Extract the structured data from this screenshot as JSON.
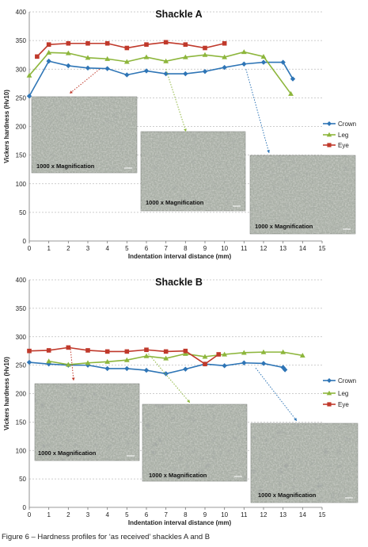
{
  "figure_caption": "Figure 6 – Hardness profiles for ‘as received’ shackles A and B",
  "colors": {
    "crown": "#2e75b6",
    "leg": "#8db63c",
    "eye": "#c0392b",
    "grid": "#bdbdbd",
    "micro": "#a9afa6"
  },
  "chart_data": [
    {
      "type": "line",
      "title": "Shackle A",
      "xlabel": "Indentation interval distance (mm)",
      "ylabel": "Vickers hardness (Hv10)",
      "xlim": [
        0,
        15
      ],
      "ylim": [
        0,
        400
      ],
      "xticks": [
        "0",
        "1",
        "2",
        "3",
        "4",
        "5",
        "6",
        "7",
        "8",
        "9",
        "10",
        "11",
        "12",
        "13",
        "14",
        "15"
      ],
      "yticks": [
        "0",
        "50",
        "100",
        "150",
        "200",
        "250",
        "300",
        "350",
        "400"
      ],
      "grid": true,
      "legend": "right",
      "series": [
        {
          "name": "Crown",
          "color": "#2e75b6",
          "marker": "diamond",
          "x": [
            0,
            1,
            2,
            3,
            4,
            5,
            6,
            7,
            8,
            9,
            10,
            11,
            12,
            13,
            13.5
          ],
          "y": [
            253,
            314,
            306,
            302,
            301,
            290,
            297,
            292,
            292,
            296,
            303,
            309,
            312,
            312,
            283
          ]
        },
        {
          "name": "Leg",
          "color": "#8db63c",
          "marker": "triangle",
          "x": [
            0,
            1,
            2,
            3,
            4,
            5,
            6,
            7,
            8,
            9,
            10,
            11,
            12,
            13.4
          ],
          "y": [
            289,
            329,
            328,
            320,
            318,
            313,
            321,
            314,
            321,
            325,
            321,
            330,
            322,
            257
          ]
        },
        {
          "name": "Eye",
          "color": "#c0392b",
          "marker": "square",
          "x": [
            0.4,
            1,
            2,
            3,
            4,
            5,
            6,
            7,
            8,
            9,
            10
          ],
          "y": [
            322,
            343,
            345,
            345,
            345,
            337,
            343,
            347,
            343,
            337,
            345
          ]
        }
      ],
      "annotations": [
        "1000 x Magnification",
        "1000 x Magnification",
        "1000 x Magnification"
      ]
    },
    {
      "type": "line",
      "title": "Shackle B",
      "xlabel": "Indentation interval distance (mm)",
      "ylabel": "Vickers hardness (Hv10)",
      "xlim": [
        0,
        15
      ],
      "ylim": [
        0,
        400
      ],
      "xticks": [
        "0",
        "1",
        "2",
        "3",
        "4",
        "5",
        "6",
        "7",
        "8",
        "9",
        "10",
        "11",
        "12",
        "13",
        "14",
        "15"
      ],
      "yticks": [
        "0",
        "50",
        "100",
        "150",
        "200",
        "250",
        "300",
        "350",
        "400"
      ],
      "grid": true,
      "legend": "right",
      "series": [
        {
          "name": "Crown",
          "color": "#2e75b6",
          "marker": "diamond",
          "x": [
            0,
            1,
            2,
            3,
            4,
            5,
            6,
            7,
            8,
            9,
            10,
            11,
            12,
            13,
            13.1
          ],
          "y": [
            255,
            252,
            250,
            250,
            244,
            244,
            241,
            235,
            243,
            252,
            249,
            254,
            253,
            246,
            242
          ]
        },
        {
          "name": "Leg",
          "color": "#8db63c",
          "marker": "triangle",
          "x": [
            1,
            2,
            3,
            4,
            5,
            6,
            7,
            8,
            9,
            10,
            11,
            12,
            13,
            14
          ],
          "y": [
            257,
            251,
            254,
            256,
            259,
            266,
            262,
            270,
            265,
            269,
            272,
            273,
            273,
            267
          ]
        },
        {
          "name": "Eye",
          "color": "#c0392b",
          "marker": "square",
          "x": [
            0,
            1,
            2,
            3,
            4,
            5,
            6,
            7,
            8,
            9,
            9.7
          ],
          "y": [
            275,
            276,
            281,
            276,
            274,
            274,
            277,
            274,
            275,
            252,
            269
          ]
        }
      ],
      "annotations": [
        "1000 x Magnification",
        "1000 x Magnification",
        "1000 x Magnification"
      ]
    }
  ]
}
